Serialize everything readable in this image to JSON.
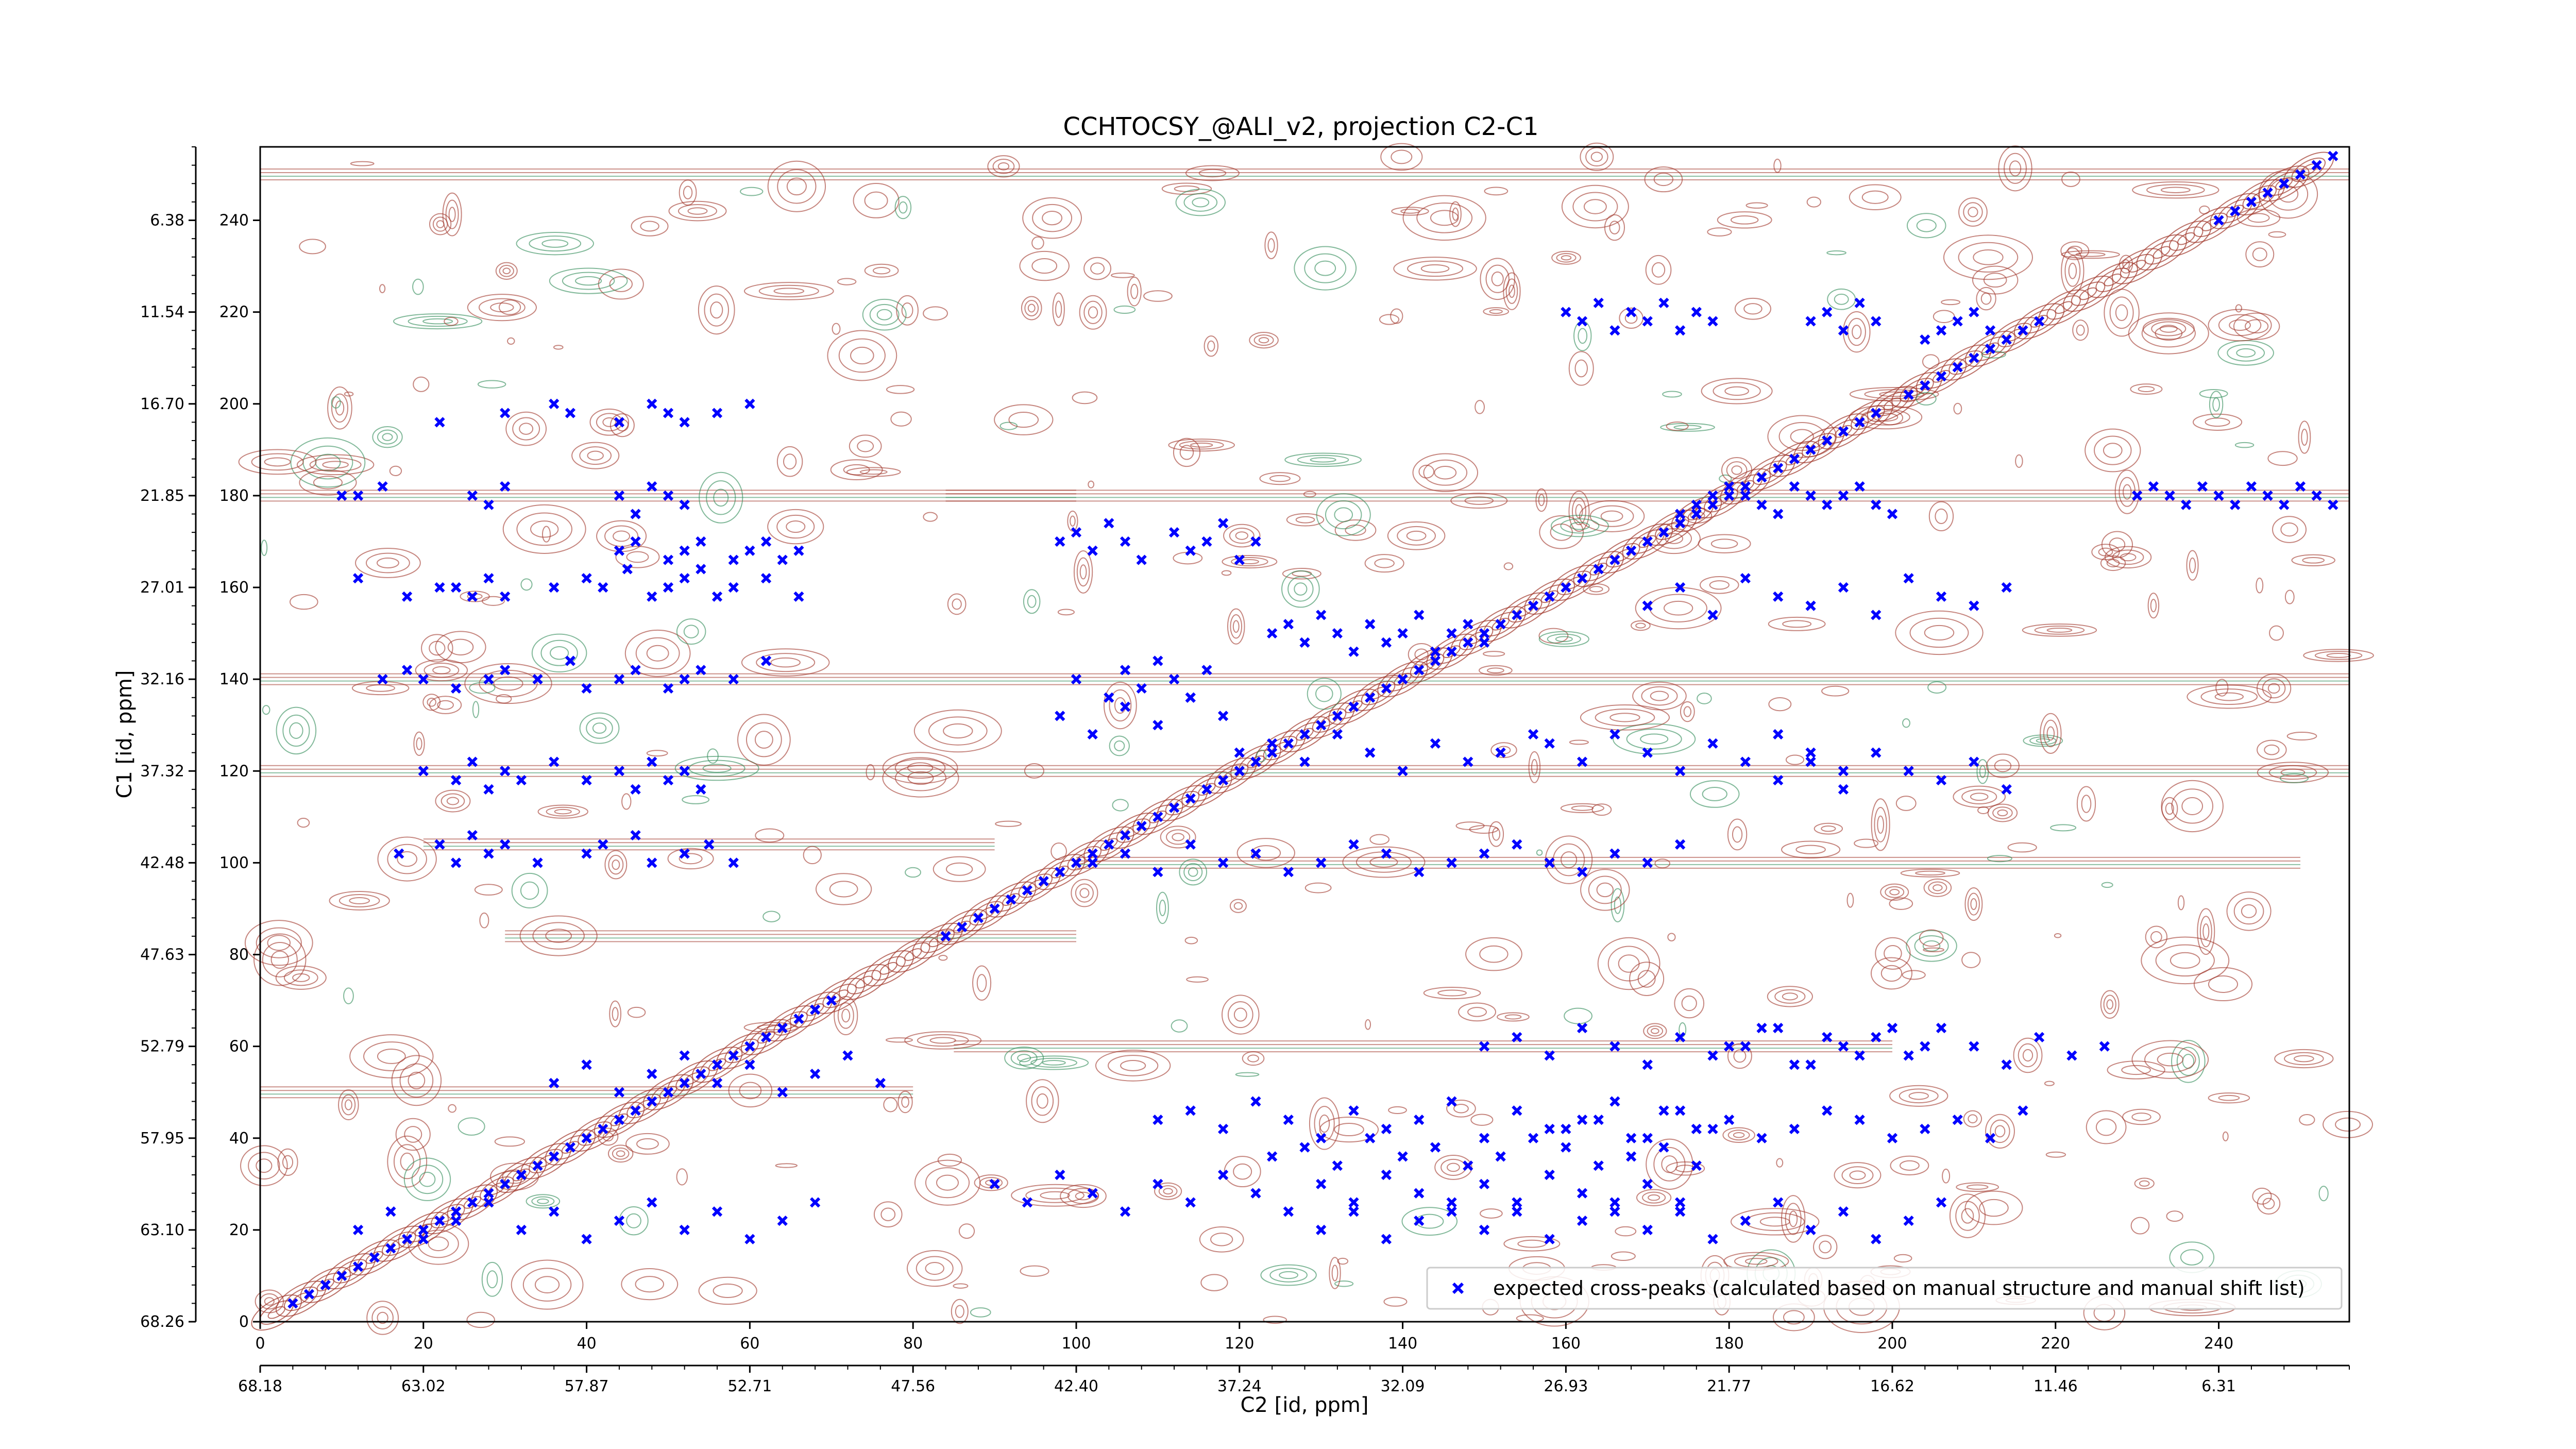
{
  "chart_data": {
    "type": "scatter",
    "title": "CCHTOCSY_@ALI_v2, projection C2-C1",
    "xlabel": "C2 [id, ppm]",
    "ylabel": "C1 [id, ppm]",
    "xlim": [
      0,
      256
    ],
    "ylim": [
      0,
      256
    ],
    "grid": false,
    "legend_position": "lower-right",
    "x_ticks_index": [
      "0",
      "20",
      "40",
      "60",
      "80",
      "100",
      "120",
      "140",
      "160",
      "180",
      "200",
      "220",
      "240"
    ],
    "x_ticks_ppm": [
      "68.18",
      "63.02",
      "57.87",
      "52.71",
      "47.56",
      "42.40",
      "37.24",
      "32.09",
      "26.93",
      "21.77",
      "16.62",
      "11.46",
      "6.31"
    ],
    "y_ticks_index": [
      "0",
      "20",
      "40",
      "60",
      "80",
      "100",
      "120",
      "140",
      "160",
      "180",
      "200",
      "220",
      "240"
    ],
    "y_ticks_ppm": [
      "68.26",
      "63.10",
      "57.95",
      "52.79",
      "47.63",
      "42.48",
      "37.32",
      "32.16",
      "27.01",
      "21.85",
      "16.70",
      "11.54",
      "6.38"
    ],
    "colors": {
      "peaks": "#0000ff",
      "contour_positive": "#a0362a",
      "contour_negative": "#2e8b57"
    },
    "series": [
      {
        "name": "expected cross-peaks (calculated based on manual structure and manual shift list)",
        "marker": "x",
        "x": [
          4,
          6,
          8,
          10,
          12,
          14,
          16,
          18,
          20,
          22,
          24,
          26,
          28,
          30,
          32,
          34,
          36,
          38,
          40,
          42,
          44,
          46,
          48,
          50,
          52,
          54,
          56,
          58,
          60,
          62,
          64,
          66,
          68,
          70,
          84,
          86,
          88,
          90,
          92,
          94,
          96,
          98,
          100,
          102,
          104,
          106,
          108,
          110,
          112,
          114,
          116,
          118,
          120,
          122,
          124,
          126,
          128,
          130,
          132,
          134,
          136,
          138,
          140,
          142,
          144,
          146,
          148,
          150,
          152,
          154,
          156,
          158,
          160,
          162,
          164,
          166,
          168,
          170,
          172,
          174,
          176,
          178,
          180,
          182,
          184,
          186,
          188,
          190,
          192,
          194,
          196,
          198,
          202,
          204,
          206,
          208,
          210,
          212,
          214,
          216,
          218,
          240,
          242,
          244,
          246,
          248,
          250,
          252,
          254,
          10,
          12,
          15,
          26,
          28,
          30,
          44,
          46,
          48,
          50,
          52,
          12,
          18,
          22,
          24,
          26,
          28,
          30,
          36,
          40,
          42,
          45,
          48,
          50,
          52,
          54,
          56,
          58,
          62,
          66,
          15,
          18,
          20,
          24,
          28,
          30,
          34,
          38,
          40,
          44,
          46,
          50,
          52,
          54,
          58,
          62,
          20,
          24,
          26,
          28,
          30,
          32,
          36,
          40,
          44,
          46,
          48,
          50,
          52,
          54,
          17,
          22,
          24,
          26,
          28,
          30,
          34,
          40,
          42,
          46,
          48,
          52,
          55,
          58,
          22,
          30,
          36,
          38,
          44,
          48,
          50,
          52,
          56,
          60,
          44,
          46,
          50,
          52,
          54,
          58,
          60,
          62,
          64,
          66,
          98,
          100,
          102,
          104,
          106,
          108,
          112,
          114,
          116,
          118,
          120,
          122,
          124,
          126,
          128,
          130,
          132,
          134,
          136,
          138,
          140,
          142,
          144,
          146,
          148,
          150,
          100,
          104,
          106,
          108,
          110,
          112,
          114,
          116,
          160,
          162,
          164,
          166,
          168,
          170,
          172,
          174,
          176,
          178,
          190,
          192,
          194,
          196,
          198,
          204,
          206,
          208,
          210,
          212,
          98,
          102,
          106,
          110,
          114,
          118,
          120,
          124,
          128,
          132,
          136,
          140,
          144,
          148,
          152,
          156,
          158,
          162,
          166,
          170,
          174,
          178,
          182,
          186,
          190,
          194,
          102,
          106,
          110,
          114,
          118,
          122,
          126,
          130,
          134,
          138,
          142,
          146,
          150,
          154,
          158,
          162,
          166,
          170,
          174,
          110,
          114,
          118,
          122,
          126,
          130,
          134,
          138,
          142,
          146,
          150,
          154,
          158,
          162,
          166,
          170,
          174,
          178,
          124,
          128,
          132,
          136,
          140,
          144,
          148,
          152,
          156,
          160,
          164,
          168,
          172,
          176,
          160,
          164,
          168,
          172,
          176,
          180,
          184,
          188,
          192,
          196,
          200,
          204,
          208,
          212,
          216,
          174,
          176,
          178,
          180,
          182,
          184,
          186,
          188,
          190,
          192,
          194,
          196,
          198,
          200,
          230,
          232,
          234,
          236,
          238,
          240,
          242,
          244,
          246,
          248,
          250,
          252,
          254,
          150,
          154,
          158,
          162,
          166,
          170,
          174,
          178,
          182,
          186,
          190,
          194,
          198,
          202,
          206,
          210,
          214,
          218,
          222,
          226,
          186,
          190,
          194,
          198,
          202,
          206,
          210,
          214,
          170,
          174,
          178,
          182,
          186,
          190,
          194,
          198,
          202,
          206,
          210,
          214,
          180,
          184,
          188,
          192,
          196,
          200,
          204,
          12,
          16,
          20,
          24,
          28,
          32,
          36,
          40,
          44,
          48,
          52,
          56,
          60,
          64,
          68,
          90,
          94,
          98,
          102,
          106,
          110,
          114,
          118,
          122,
          126,
          130,
          134,
          138,
          142,
          146,
          150,
          154,
          158,
          162,
          166,
          170,
          174,
          130,
          134,
          138,
          142,
          146,
          150,
          154,
          158,
          162,
          166,
          170,
          174,
          178,
          182,
          186,
          190,
          194,
          198,
          202,
          206,
          36,
          40,
          44,
          48,
          52,
          56,
          60,
          64,
          68,
          72,
          76
        ],
        "y": [
          4,
          6,
          8,
          10,
          12,
          14,
          16,
          18,
          20,
          22,
          24,
          26,
          28,
          30,
          32,
          34,
          36,
          38,
          40,
          42,
          44,
          46,
          48,
          50,
          52,
          54,
          56,
          58,
          60,
          62,
          64,
          66,
          68,
          70,
          84,
          86,
          88,
          90,
          92,
          94,
          96,
          98,
          100,
          102,
          104,
          106,
          108,
          110,
          112,
          114,
          116,
          118,
          120,
          122,
          124,
          126,
          128,
          130,
          132,
          134,
          136,
          138,
          140,
          142,
          144,
          146,
          148,
          150,
          152,
          154,
          156,
          158,
          160,
          162,
          164,
          166,
          168,
          170,
          172,
          174,
          176,
          178,
          180,
          182,
          184,
          186,
          188,
          190,
          192,
          194,
          196,
          198,
          202,
          204,
          206,
          208,
          210,
          212,
          214,
          216,
          218,
          240,
          242,
          244,
          246,
          248,
          250,
          252,
          254,
          180,
          180,
          182,
          180,
          178,
          182,
          180,
          176,
          182,
          180,
          178,
          162,
          158,
          160,
          160,
          158,
          162,
          158,
          160,
          162,
          160,
          164,
          158,
          160,
          162,
          164,
          158,
          160,
          162,
          158,
          140,
          142,
          140,
          138,
          140,
          142,
          140,
          144,
          138,
          140,
          142,
          138,
          140,
          142,
          140,
          144,
          120,
          118,
          122,
          116,
          120,
          118,
          122,
          118,
          120,
          116,
          122,
          118,
          120,
          116,
          102,
          104,
          100,
          106,
          102,
          104,
          100,
          102,
          104,
          106,
          100,
          102,
          104,
          100,
          196,
          198,
          200,
          198,
          196,
          200,
          198,
          196,
          198,
          200,
          168,
          170,
          166,
          168,
          170,
          166,
          168,
          170,
          166,
          168,
          170,
          172,
          168,
          174,
          170,
          166,
          172,
          168,
          170,
          174,
          166,
          170,
          150,
          152,
          148,
          154,
          150,
          146,
          152,
          148,
          150,
          154,
          146,
          150,
          152,
          148,
          140,
          136,
          142,
          138,
          144,
          140,
          136,
          142,
          220,
          218,
          222,
          216,
          220,
          218,
          222,
          216,
          220,
          218,
          218,
          220,
          216,
          222,
          218,
          214,
          216,
          218,
          220,
          216,
          132,
          128,
          134,
          130,
          136,
          132,
          124,
          126,
          122,
          128,
          124,
          120,
          126,
          122,
          124,
          128,
          126,
          122,
          128,
          124,
          120,
          126,
          122,
          128,
          124,
          120,
          100,
          102,
          98,
          104,
          100,
          102,
          98,
          100,
          104,
          102,
          98,
          100,
          102,
          104,
          100,
          98,
          102,
          100,
          104,
          44,
          46,
          42,
          48,
          44,
          40,
          46,
          42,
          44,
          48,
          40,
          46,
          42,
          44,
          48,
          40,
          46,
          42,
          36,
          38,
          34,
          40,
          36,
          38,
          34,
          36,
          40,
          38,
          34,
          36,
          38,
          34,
          42,
          44,
          40,
          46,
          42,
          44,
          40,
          42,
          46,
          44,
          40,
          42,
          44,
          40,
          46,
          176,
          178,
          180,
          182,
          180,
          178,
          176,
          182,
          180,
          178,
          180,
          182,
          178,
          176,
          180,
          182,
          180,
          178,
          182,
          180,
          178,
          182,
          180,
          178,
          182,
          180,
          178,
          60,
          62,
          58,
          64,
          60,
          56,
          62,
          58,
          60,
          64,
          56,
          60,
          62,
          58,
          64,
          60,
          56,
          62,
          58,
          60,
          118,
          122,
          116,
          124,
          120,
          118,
          122,
          116,
          156,
          160,
          154,
          162,
          158,
          156,
          160,
          154,
          162,
          158,
          156,
          160,
          60,
          64,
          56,
          62,
          58,
          64,
          60,
          20,
          24,
          18,
          22,
          26,
          20,
          24,
          18,
          22,
          26,
          20,
          24,
          18,
          22,
          26,
          30,
          26,
          32,
          28,
          24,
          30,
          26,
          32,
          28,
          24,
          30,
          26,
          32,
          28,
          24,
          30,
          26,
          32,
          28,
          24,
          30,
          26,
          20,
          24,
          18,
          22,
          26,
          20,
          24,
          18,
          22,
          26,
          20,
          24,
          18,
          22,
          26,
          20,
          24,
          18,
          22,
          26,
          52,
          56,
          50,
          54,
          58,
          52,
          56,
          50,
          54,
          58,
          52
        ]
      }
    ]
  }
}
